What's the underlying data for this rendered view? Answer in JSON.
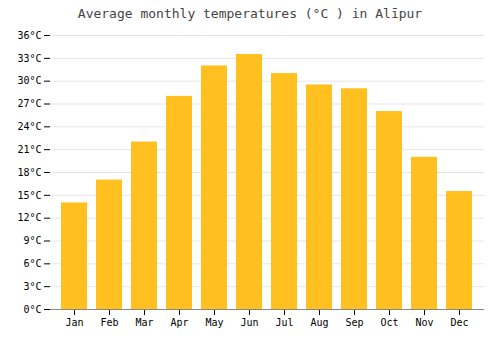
{
  "chart_data": {
    "type": "bar",
    "title": "Average monthly temperatures (°C ) in Alīpur",
    "categories": [
      "Jan",
      "Feb",
      "Mar",
      "Apr",
      "May",
      "Jun",
      "Jul",
      "Aug",
      "Sep",
      "Oct",
      "Nov",
      "Dec"
    ],
    "values": [
      14.0,
      17.0,
      22.0,
      28.0,
      32.0,
      33.5,
      31.0,
      29.5,
      29.0,
      26.0,
      20.0,
      15.5
    ],
    "color": "#FFC020",
    "ylim": [
      0,
      36
    ],
    "yticks": [
      {
        "value": 0,
        "label": "0°C"
      },
      {
        "value": 3,
        "label": "3°C"
      },
      {
        "value": 6,
        "label": "6°C"
      },
      {
        "value": 9,
        "label": "9°C"
      },
      {
        "value": 12,
        "label": "12°C"
      },
      {
        "value": 15,
        "label": "15°C"
      },
      {
        "value": 18,
        "label": "18°C"
      },
      {
        "value": 21,
        "label": "21°C"
      },
      {
        "value": 24,
        "label": "24°C"
      },
      {
        "value": 27,
        "label": "27°C"
      },
      {
        "value": 30,
        "label": "30°C"
      },
      {
        "value": 33,
        "label": "33°C"
      },
      {
        "value": 36,
        "label": "36°C"
      }
    ],
    "grid": true
  }
}
